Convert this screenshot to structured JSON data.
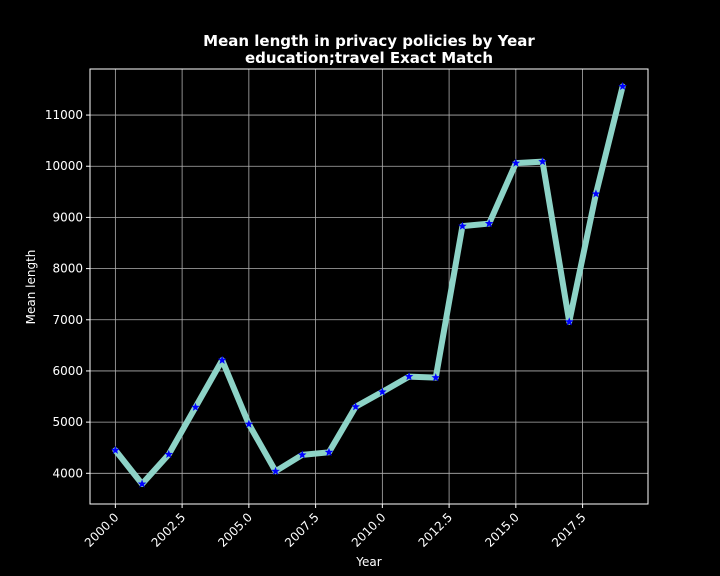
{
  "chart_data": {
    "type": "line",
    "title_line1": "Mean length in privacy policies by Year",
    "title_line2": "education;travel Exact Match",
    "xlabel": "Year",
    "ylabel": "Mean length",
    "xlim": [
      1999.05,
      2019.95
    ],
    "ylim": [
      3400,
      11900
    ],
    "x_ticks": [
      2000.0,
      2002.5,
      2005.0,
      2007.5,
      2010.0,
      2012.5,
      2015.0,
      2017.5
    ],
    "x_tick_labels": [
      "2000.0",
      "2002.5",
      "2005.0",
      "2007.5",
      "2010.0",
      "2012.5",
      "2015.0",
      "2017.5"
    ],
    "y_ticks": [
      4000,
      5000,
      6000,
      7000,
      8000,
      9000,
      10000,
      11000
    ],
    "y_tick_labels": [
      "4000",
      "5000",
      "6000",
      "7000",
      "8000",
      "9000",
      "10000",
      "11000"
    ],
    "grid": true,
    "line_color": "#8dd3c7",
    "marker_color": "#0000ff",
    "marker": "star",
    "x": [
      2000,
      2001,
      2002,
      2003,
      2004,
      2005,
      2006,
      2007,
      2008,
      2009,
      2010,
      2011,
      2012,
      2013,
      2014,
      2015,
      2016,
      2017,
      2018,
      2019
    ],
    "values": [
      4450,
      3790,
      4370,
      5290,
      6210,
      4960,
      4040,
      4360,
      4410,
      5300,
      5590,
      5890,
      5870,
      8830,
      8880,
      10060,
      10090,
      6960,
      9460,
      11560
    ]
  }
}
